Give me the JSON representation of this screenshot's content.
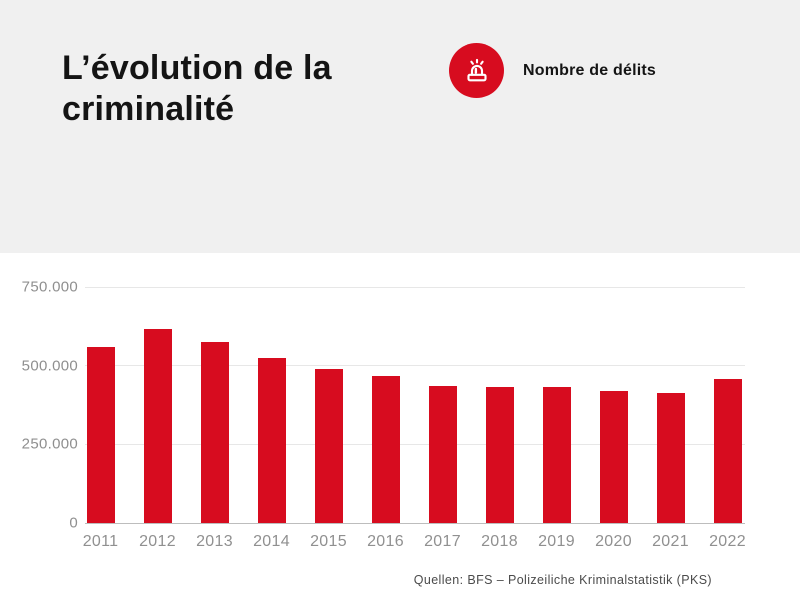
{
  "header": {
    "title_lines": [
      "L’évolution de la",
      "criminalité"
    ],
    "legend_label": "Nombre de délits"
  },
  "chart_data": {
    "type": "bar",
    "title": "L’évolution de la criminalité",
    "legend": [
      "Nombre de délits"
    ],
    "legend_position": "top-right",
    "categories": [
      "2011",
      "2012",
      "2013",
      "2014",
      "2015",
      "2016",
      "2017",
      "2018",
      "2019",
      "2020",
      "2021",
      "2022"
    ],
    "values": [
      560000,
      615000,
      575000,
      525000,
      488000,
      467000,
      435000,
      431000,
      432000,
      420000,
      412000,
      458000
    ],
    "xlabel": "",
    "ylabel": "",
    "ylim": [
      0,
      750000
    ],
    "yticks": [
      {
        "label": "0",
        "value": 0
      },
      {
        "label": "250.000",
        "value": 250000
      },
      {
        "label": "500.000",
        "value": 500000
      },
      {
        "label": "750.000",
        "value": 750000
      }
    ],
    "grid": true,
    "bar_color": "#d70c1f"
  },
  "source": "Quellen: BFS – Polizeiliche Kriminalstatistik (PKS)",
  "colors": {
    "accent_red": "#d70c1f",
    "header_bg": "#f0f0f0",
    "title_text": "#141414",
    "axis_text": "#8f8f8f",
    "gridline": "#e7e7e7",
    "baseline": "#bdbdbd",
    "source_text": "#4b4b4b"
  }
}
